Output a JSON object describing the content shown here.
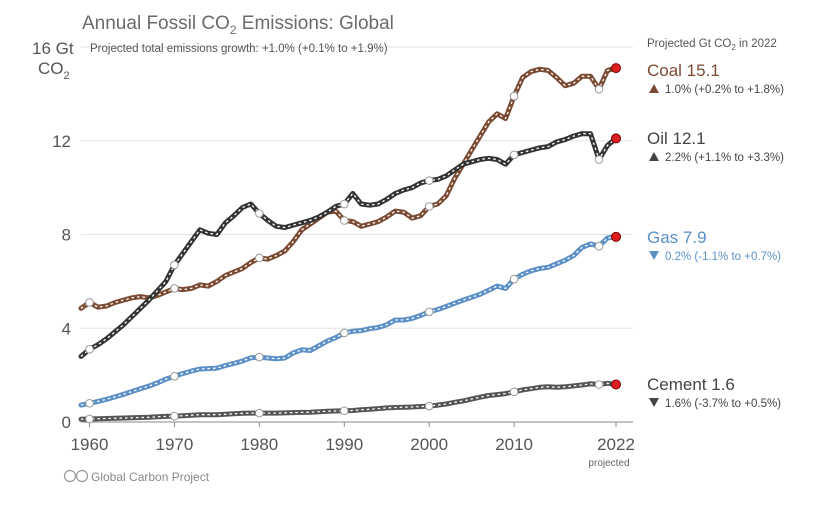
{
  "chart_data": {
    "type": "line",
    "title": "Annual Fossil CO",
    "title_sub": "2",
    "title_rest": " Emissions: Global",
    "subtitle": "Projected total emissions growth: +1.0% (+0.1% to +1.9%)",
    "ylabel_1": "16 Gt",
    "ylabel_2": "CO",
    "ylabel_2_sub": "2",
    "side_header": "Projected Gt CO",
    "side_header_sub": "2",
    "side_header_rest": " in 2022",
    "xlim": [
      1959,
      2024
    ],
    "ylim": [
      0,
      16
    ],
    "x_ticks": [
      1960,
      1970,
      1980,
      1990,
      2000,
      2010,
      2022
    ],
    "x_tick_labels": [
      "1960",
      "1970",
      "1980",
      "1990",
      "2000",
      "2010",
      "2022"
    ],
    "x_tick_note": "projected",
    "y_ticks": [
      0,
      4,
      8,
      12
    ],
    "y_tick_labels": [
      "0",
      "4",
      "8",
      "12"
    ],
    "grid": true,
    "credit": "Global Carbon Project",
    "series": [
      {
        "name": "Coal",
        "color": "#7a4a32",
        "projected_value": "15.1",
        "arrow": "up",
        "growth": "1.0% (+0.2% to +1.8%)",
        "x": [
          1959,
          1960,
          1961,
          1962,
          1963,
          1964,
          1965,
          1966,
          1967,
          1968,
          1969,
          1970,
          1971,
          1972,
          1973,
          1974,
          1975,
          1976,
          1977,
          1978,
          1979,
          1980,
          1981,
          1982,
          1983,
          1984,
          1985,
          1986,
          1987,
          1988,
          1989,
          1990,
          1991,
          1992,
          1993,
          1994,
          1995,
          1996,
          1997,
          1998,
          1999,
          2000,
          2001,
          2002,
          2003,
          2004,
          2005,
          2006,
          2007,
          2008,
          2009,
          2010,
          2011,
          2012,
          2013,
          2014,
          2015,
          2016,
          2017,
          2018,
          2019,
          2020,
          2021,
          2022
        ],
        "y": [
          4.85,
          5.1,
          4.9,
          4.95,
          5.1,
          5.2,
          5.3,
          5.35,
          5.3,
          5.4,
          5.55,
          5.7,
          5.65,
          5.7,
          5.85,
          5.8,
          6.0,
          6.25,
          6.4,
          6.55,
          6.8,
          7.0,
          6.95,
          7.1,
          7.3,
          7.7,
          8.2,
          8.45,
          8.7,
          8.95,
          9.0,
          8.6,
          8.55,
          8.35,
          8.45,
          8.55,
          8.75,
          9.0,
          8.95,
          8.7,
          8.8,
          9.2,
          9.3,
          9.65,
          10.4,
          11.0,
          11.6,
          12.2,
          12.8,
          13.15,
          12.95,
          13.9,
          14.7,
          14.95,
          15.05,
          15.0,
          14.7,
          14.35,
          14.45,
          14.75,
          14.75,
          14.2,
          15.0,
          15.1
        ],
        "hollow_markers": [
          1960,
          1970,
          1980,
          1990,
          2000,
          2010,
          2020
        ],
        "projected_marker": 2022
      },
      {
        "name": "Oil",
        "color": "#333333",
        "projected_value": "12.1",
        "arrow": "up",
        "growth": "2.2% (+1.1% to +3.3%)",
        "x": [
          1959,
          1960,
          1961,
          1962,
          1963,
          1964,
          1965,
          1966,
          1967,
          1968,
          1969,
          1970,
          1971,
          1972,
          1973,
          1974,
          1975,
          1976,
          1977,
          1978,
          1979,
          1980,
          1981,
          1982,
          1983,
          1984,
          1985,
          1986,
          1987,
          1988,
          1989,
          1990,
          1991,
          1992,
          1993,
          1994,
          1995,
          1996,
          1997,
          1998,
          1999,
          2000,
          2001,
          2002,
          2003,
          2004,
          2005,
          2006,
          2007,
          2008,
          2009,
          2010,
          2011,
          2012,
          2013,
          2014,
          2015,
          2016,
          2017,
          2018,
          2019,
          2020,
          2021,
          2022
        ],
        "y": [
          2.8,
          3.1,
          3.3,
          3.55,
          3.85,
          4.15,
          4.5,
          4.85,
          5.2,
          5.6,
          6.0,
          6.7,
          7.2,
          7.7,
          8.2,
          8.05,
          8.0,
          8.5,
          8.8,
          9.15,
          9.3,
          8.9,
          8.6,
          8.35,
          8.3,
          8.4,
          8.5,
          8.6,
          8.75,
          8.95,
          9.2,
          9.3,
          9.75,
          9.3,
          9.25,
          9.3,
          9.5,
          9.75,
          9.9,
          10.0,
          10.2,
          10.3,
          10.35,
          10.5,
          10.75,
          11.0,
          11.1,
          11.2,
          11.25,
          11.2,
          11.0,
          11.4,
          11.5,
          11.6,
          11.7,
          11.75,
          11.95,
          12.05,
          12.2,
          12.3,
          12.3,
          11.2,
          11.8,
          12.1
        ],
        "hollow_markers": [
          1960,
          1970,
          1980,
          1990,
          2000,
          2010,
          2020
        ],
        "projected_marker": 2022
      },
      {
        "name": "Gas",
        "color": "#5b8fc6",
        "projected_value": "7.9",
        "arrow": "down",
        "growth": "0.2% (-1.1% to +0.7%)",
        "x": [
          1959,
          1960,
          1961,
          1962,
          1963,
          1964,
          1965,
          1966,
          1967,
          1968,
          1969,
          1970,
          1971,
          1972,
          1973,
          1974,
          1975,
          1976,
          1977,
          1978,
          1979,
          1980,
          1981,
          1982,
          1983,
          1984,
          1985,
          1986,
          1987,
          1988,
          1989,
          1990,
          1991,
          1992,
          1993,
          1994,
          1995,
          1996,
          1997,
          1998,
          1999,
          2000,
          2001,
          2002,
          2003,
          2004,
          2005,
          2006,
          2007,
          2008,
          2009,
          2010,
          2011,
          2012,
          2013,
          2014,
          2015,
          2016,
          2017,
          2018,
          2019,
          2020,
          2021,
          2022
        ],
        "y": [
          0.72,
          0.8,
          0.88,
          0.97,
          1.07,
          1.18,
          1.3,
          1.42,
          1.53,
          1.67,
          1.83,
          1.95,
          2.07,
          2.17,
          2.26,
          2.28,
          2.3,
          2.41,
          2.5,
          2.6,
          2.74,
          2.77,
          2.73,
          2.7,
          2.73,
          2.95,
          3.08,
          3.05,
          3.25,
          3.45,
          3.6,
          3.8,
          3.87,
          3.9,
          3.98,
          4.03,
          4.15,
          4.35,
          4.35,
          4.42,
          4.55,
          4.7,
          4.8,
          4.93,
          5.07,
          5.2,
          5.32,
          5.45,
          5.62,
          5.8,
          5.7,
          6.1,
          6.3,
          6.45,
          6.55,
          6.6,
          6.75,
          6.9,
          7.1,
          7.45,
          7.6,
          7.5,
          7.85,
          7.9
        ],
        "hollow_markers": [
          1960,
          1970,
          1980,
          1990,
          2000,
          2010,
          2020
        ],
        "projected_marker": 2022
      },
      {
        "name": "Cement",
        "color": "#555555",
        "projected_value": "1.6",
        "arrow": "down",
        "growth": "1.6% (-3.7% to +0.5%)",
        "x": [
          1959,
          1960,
          1961,
          1962,
          1963,
          1964,
          1965,
          1966,
          1967,
          1968,
          1969,
          1970,
          1971,
          1972,
          1973,
          1974,
          1975,
          1976,
          1977,
          1978,
          1979,
          1980,
          1981,
          1982,
          1983,
          1984,
          1985,
          1986,
          1987,
          1988,
          1989,
          1990,
          1991,
          1992,
          1993,
          1994,
          1995,
          1996,
          1997,
          1998,
          1999,
          2000,
          2001,
          2002,
          2003,
          2004,
          2005,
          2006,
          2007,
          2008,
          2009,
          2010,
          2011,
          2012,
          2013,
          2014,
          2015,
          2016,
          2017,
          2018,
          2019,
          2020,
          2021,
          2022
        ],
        "y": [
          0.12,
          0.13,
          0.14,
          0.15,
          0.16,
          0.17,
          0.18,
          0.19,
          0.2,
          0.22,
          0.24,
          0.25,
          0.27,
          0.29,
          0.31,
          0.31,
          0.31,
          0.33,
          0.35,
          0.37,
          0.38,
          0.38,
          0.38,
          0.38,
          0.39,
          0.4,
          0.41,
          0.42,
          0.44,
          0.46,
          0.47,
          0.48,
          0.49,
          0.52,
          0.54,
          0.57,
          0.6,
          0.62,
          0.63,
          0.64,
          0.66,
          0.68,
          0.72,
          0.77,
          0.84,
          0.9,
          0.98,
          1.06,
          1.13,
          1.17,
          1.21,
          1.29,
          1.37,
          1.42,
          1.48,
          1.5,
          1.48,
          1.5,
          1.54,
          1.58,
          1.63,
          1.6,
          1.65,
          1.6
        ],
        "hollow_markers": [
          1960,
          1970,
          1980,
          1990,
          2000,
          2010,
          2020
        ],
        "projected_marker": 2022
      }
    ]
  }
}
